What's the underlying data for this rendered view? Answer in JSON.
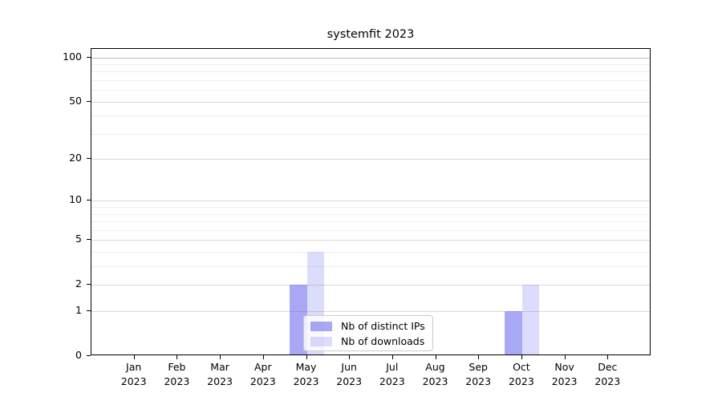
{
  "chart_data": {
    "type": "bar",
    "title": "systemfit 2023",
    "categories": [
      "Jan 2023",
      "Feb 2023",
      "Mar 2023",
      "Apr 2023",
      "May 2023",
      "Jun 2023",
      "Jul 2023",
      "Aug 2023",
      "Sep 2023",
      "Oct 2023",
      "Nov 2023",
      "Dec 2023"
    ],
    "x": {
      "months": [
        "Jan",
        "Feb",
        "Mar",
        "Apr",
        "May",
        "Jun",
        "Jul",
        "Aug",
        "Sep",
        "Oct",
        "Nov",
        "Dec"
      ],
      "year": "2023"
    },
    "series": [
      {
        "name": "Nb of distinct IPs",
        "color": "#5a5aeb",
        "opacity": 0.53,
        "values": [
          0,
          0,
          0,
          0,
          2,
          0,
          0,
          0,
          0,
          1,
          0,
          0
        ]
      },
      {
        "name": "Nb of downloads",
        "color": "#5a5aeb",
        "opacity": 0.21,
        "values": [
          0,
          0,
          0,
          0,
          4,
          0,
          0,
          0,
          0,
          2,
          0,
          0
        ]
      }
    ],
    "y_axis": {
      "scale": "log1p",
      "tick_labels": [
        0,
        1,
        2,
        5,
        10,
        20,
        50,
        100
      ],
      "minor_gridlines": [
        3,
        4,
        6,
        7,
        8,
        9,
        30,
        40,
        60,
        70,
        80,
        90
      ],
      "max": 114
    },
    "xlabel": "",
    "ylabel": "",
    "grid": "on",
    "legend_position": "inside-bottom-center"
  }
}
